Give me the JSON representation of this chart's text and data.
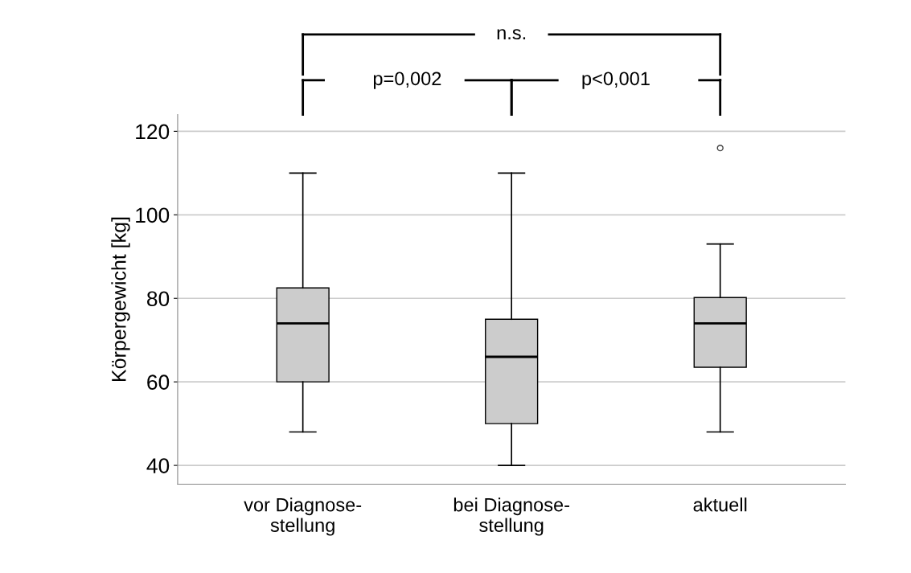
{
  "chart_data": {
    "type": "box",
    "ylabel": "Körpergewicht [kg]",
    "categories": [
      "vor Diagnose-\nstellung",
      "bei Diagnose-\nstellung",
      "aktuell"
    ],
    "boxes": [
      {
        "low": 48,
        "q1": 60,
        "median": 74,
        "q3": 82.5,
        "high": 110
      },
      {
        "low": 40,
        "q1": 50,
        "median": 66,
        "q3": 75,
        "high": 110
      },
      {
        "low": 48,
        "q1": 63.5,
        "median": 74,
        "q3": 80.2,
        "high": 93,
        "outliers": [
          116
        ]
      }
    ],
    "color": "#cccccc",
    "ylim": [
      35.5,
      124
    ],
    "yticks": [
      40,
      60,
      80,
      100,
      120
    ],
    "grid": "y",
    "annotations": [
      "n.s.",
      "p=0,002",
      "p<0,001"
    ]
  }
}
